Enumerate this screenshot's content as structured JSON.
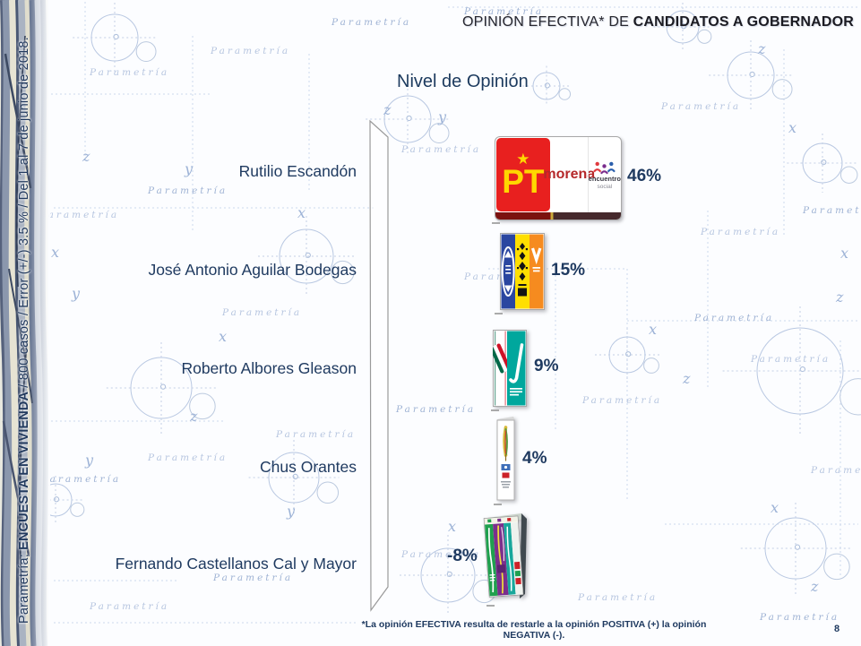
{
  "brand": {
    "watermark": "Parametría"
  },
  "page": {
    "number": "8"
  },
  "header": {
    "title_regular": "OPINIÓN EFECTIVA*  DE ",
    "title_bold": "CANDIDATOS A GOBERNADOR"
  },
  "sidebar": {
    "prefix": "Parametría; ",
    "bold": "ENCUESTA EN VIVIENDA",
    "suffix": " / 800 casos / Error (+/-) 3.5 % / Del 1 al 7 de junio de 2018."
  },
  "chart": {
    "title": "Nivel de Opinión",
    "footnote": "*La opinión EFECTIVA resulta de restarle a la opinión POSITIVA (+) la opinión NEGATIVA (-)."
  },
  "chart_data": {
    "type": "bar",
    "orientation": "horizontal",
    "title": "Nivel de Opinión",
    "categories": [
      "Rutilio Escandón",
      "José Antonio Aguilar Bodegas",
      "Roberto Albores Gleason",
      "Chus Orantes",
      "Fernando Castellanos Cal y Mayor"
    ],
    "values": [
      46,
      15,
      9,
      4,
      -8
    ],
    "labels": [
      "46%",
      "15%",
      "9%",
      "4%",
      "-8%"
    ],
    "bar_icons": [
      "pt-morena-encuentro-social-logo",
      "blue-yellow-orange-coalition-logo",
      "pri-nueva-alianza-logo",
      "independent-feather-logo",
      "green-purple-teal-coalition-logo"
    ],
    "axis": "zero-axis 3d wall at left of bars",
    "legend": "none",
    "grid": "decorative watermark only"
  },
  "logos": {
    "pt": "PT",
    "morena": "morena",
    "encuentro": "encuentro",
    "social": "social"
  },
  "decor": {
    "axis_letters": [
      "x",
      "y",
      "z"
    ]
  },
  "colors": {
    "accent_navy": "#1f3a60",
    "header_text": "#26262e",
    "watermark_blue": "#b7c6e0",
    "pt_red": "#e8201f",
    "pt_yellow": "#ffd700",
    "morena_red": "#b5282a",
    "pan_blue": "#2a46a0",
    "prd_yellow": "#ffdf00",
    "mc_orange": "#f68b1f",
    "pri_green": "#006847",
    "pri_red": "#ce1126",
    "panal_teal": "#00a79d",
    "pvem_green": "#1fa04e",
    "chiapas_purple": "#7b2f8d"
  }
}
